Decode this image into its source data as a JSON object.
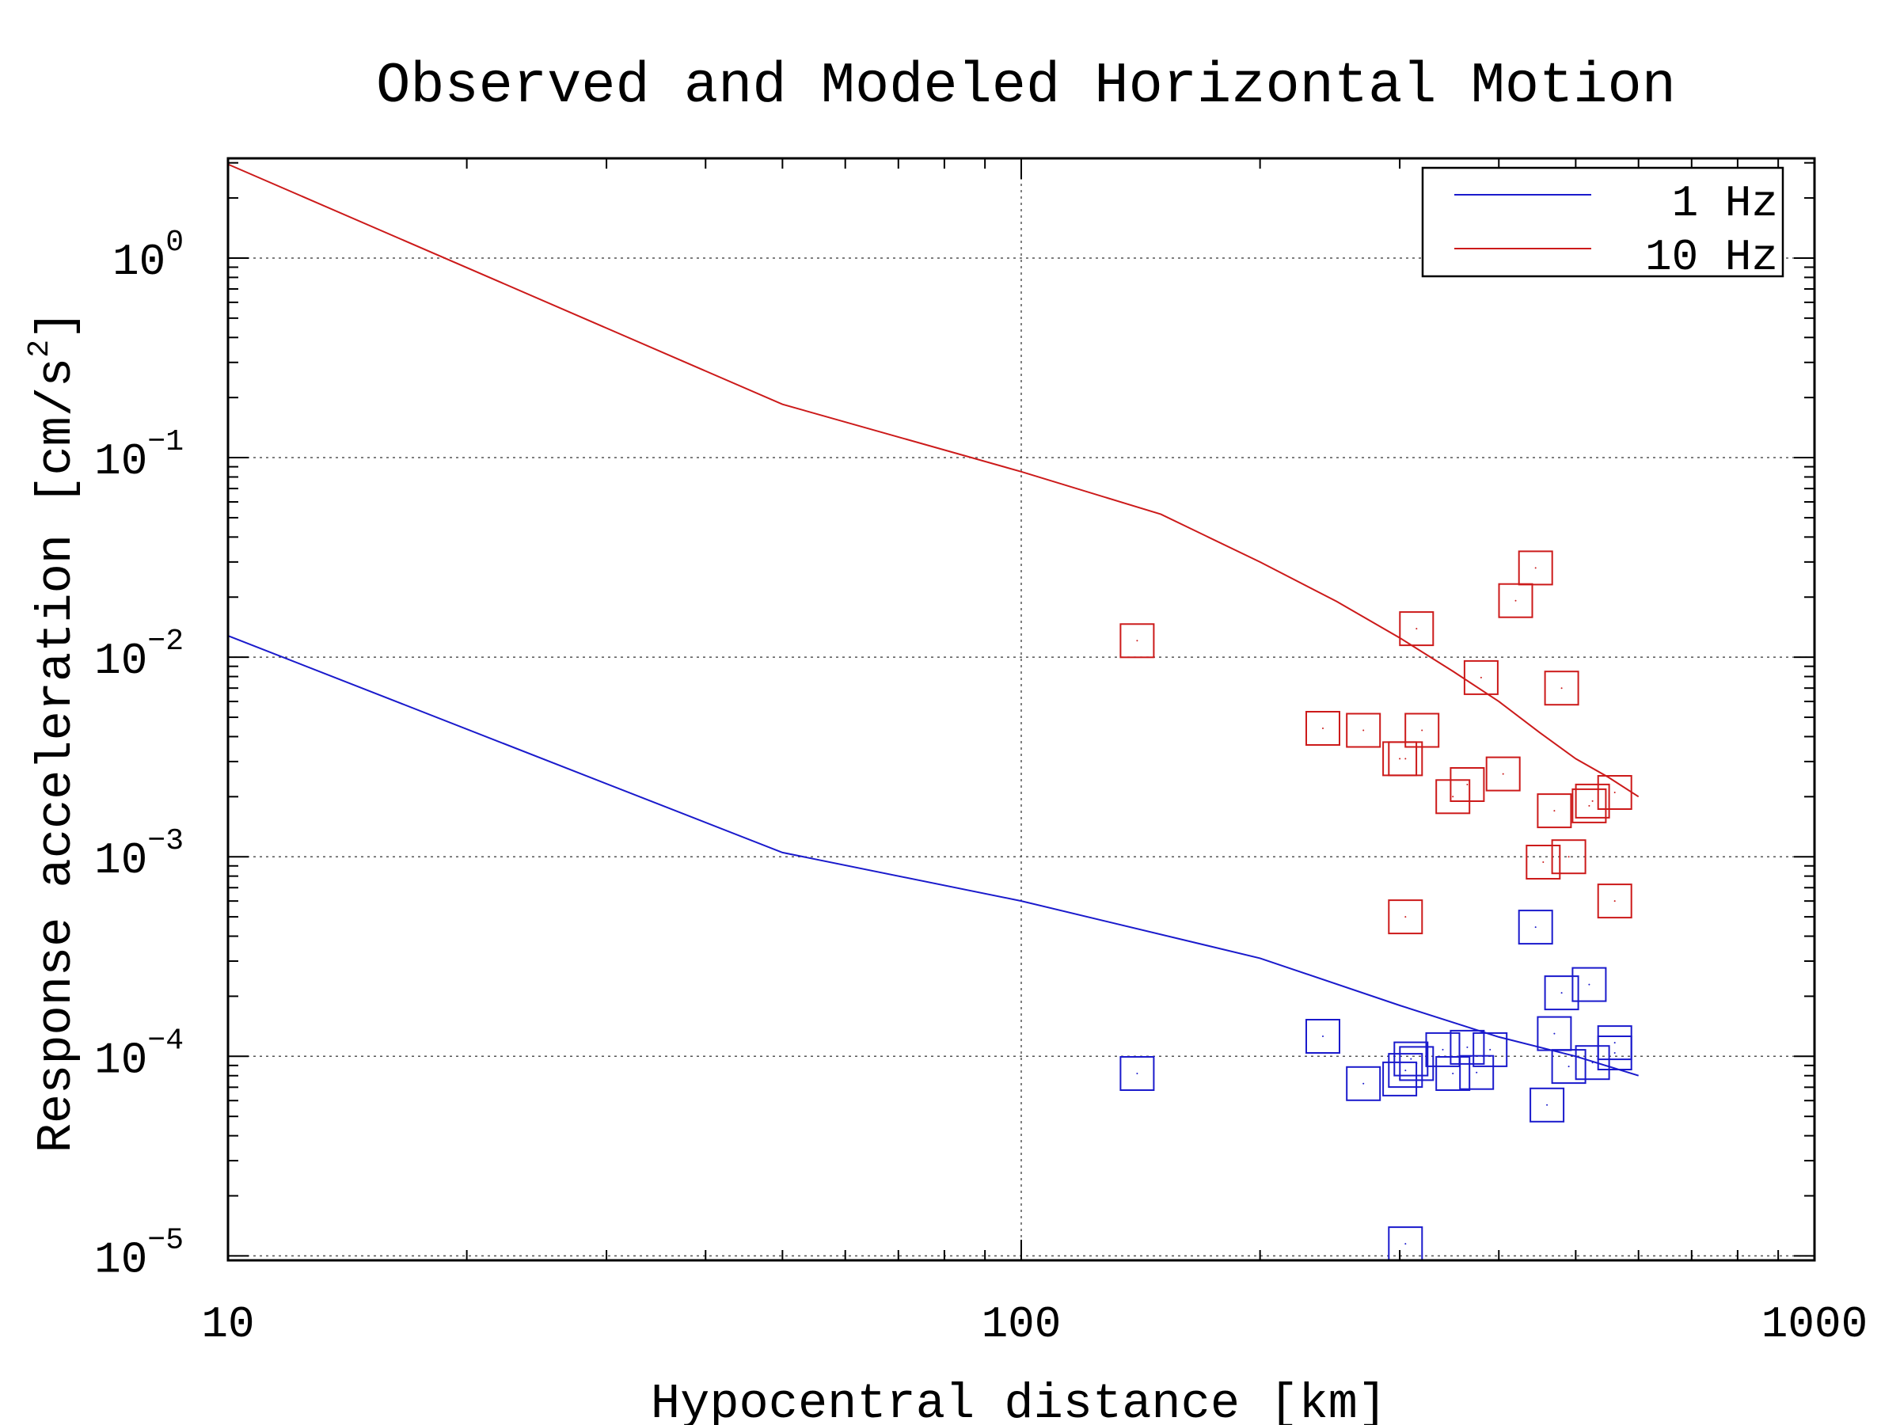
{
  "chart_data": {
    "type": "scatter",
    "title": "Observed and Modeled Horizontal Motion",
    "xlabel": "Hypocentral distance [km]",
    "ylabel_prefix": "Response acceleration [cm/s",
    "ylabel_sup": "2",
    "ylabel_suffix": "]",
    "xscale": "log",
    "yscale": "log",
    "xlim": [
      10,
      1000
    ],
    "ylim": [
      9.5e-06,
      3.16
    ],
    "grid": true,
    "legend_position": "top-right",
    "x_ticks": [
      {
        "value": 10,
        "label": "10"
      },
      {
        "value": 100,
        "label": "100"
      },
      {
        "value": 1000,
        "label": "1000"
      }
    ],
    "y_ticks": [
      {
        "value": 1,
        "base": "10",
        "exp": "0"
      },
      {
        "value": 0.1,
        "base": "10",
        "exp": "−1"
      },
      {
        "value": 0.01,
        "base": "10",
        "exp": "−2"
      },
      {
        "value": 0.001,
        "base": "10",
        "exp": "−3"
      },
      {
        "value": 0.0001,
        "base": "10",
        "exp": "−4"
      },
      {
        "value": 1e-05,
        "base": "10",
        "exp": "−5"
      }
    ],
    "series": [
      {
        "name": "1 Hz",
        "color": "#1a1acc",
        "model_line": [
          [
            10,
            0.0128
          ],
          [
            50,
            0.00105
          ],
          [
            100,
            0.0006
          ],
          [
            200,
            0.00031
          ],
          [
            300,
            0.00018
          ],
          [
            400,
            0.000125
          ],
          [
            500,
            0.0001
          ],
          [
            600,
            8e-05
          ]
        ],
        "observed": [
          [
            140,
            8.2e-05
          ],
          [
            240,
            0.000126
          ],
          [
            270,
            7.3e-05
          ],
          [
            300,
            7.7e-05
          ],
          [
            305,
            1.15e-05
          ],
          [
            305,
            8.5e-05
          ],
          [
            310,
            9.7e-05
          ],
          [
            315,
            9.2e-05
          ],
          [
            340,
            0.000108
          ],
          [
            350,
            8.2e-05
          ],
          [
            365,
            0.000111
          ],
          [
            375,
            8.3e-05
          ],
          [
            390,
            0.000108
          ],
          [
            445,
            0.000444
          ],
          [
            460,
            5.7e-05
          ],
          [
            470,
            0.00013
          ],
          [
            480,
            0.000208
          ],
          [
            490,
            8.9e-05
          ],
          [
            520,
            0.000229
          ],
          [
            525,
            9.3e-05
          ],
          [
            560,
            0.000117
          ],
          [
            560,
            0.000104
          ]
        ]
      },
      {
        "name": "10 Hz",
        "color": "#cc1a1a",
        "model_line": [
          [
            10,
            2.95
          ],
          [
            50,
            0.185
          ],
          [
            100,
            0.085
          ],
          [
            150,
            0.052
          ],
          [
            200,
            0.03
          ],
          [
            250,
            0.019
          ],
          [
            300,
            0.0125
          ],
          [
            350,
            0.0085
          ],
          [
            400,
            0.006
          ],
          [
            450,
            0.0042
          ],
          [
            500,
            0.0031
          ],
          [
            550,
            0.0025
          ],
          [
            600,
            0.002
          ]
        ],
        "observed": [
          [
            140,
            0.0121
          ],
          [
            240,
            0.0044
          ],
          [
            270,
            0.0043
          ],
          [
            300,
            0.0031
          ],
          [
            305,
            0.0031
          ],
          [
            305,
            0.0005
          ],
          [
            315,
            0.0139
          ],
          [
            320,
            0.0043
          ],
          [
            350,
            0.002
          ],
          [
            365,
            0.0023
          ],
          [
            380,
            0.0079
          ],
          [
            405,
            0.0026
          ],
          [
            420,
            0.0192
          ],
          [
            445,
            0.028
          ],
          [
            455,
            0.00094
          ],
          [
            470,
            0.0017
          ],
          [
            480,
            0.007
          ],
          [
            490,
            0.001
          ],
          [
            520,
            0.0018
          ],
          [
            525,
            0.0019
          ],
          [
            560,
            0.0021
          ],
          [
            560,
            0.0006
          ]
        ]
      }
    ]
  }
}
